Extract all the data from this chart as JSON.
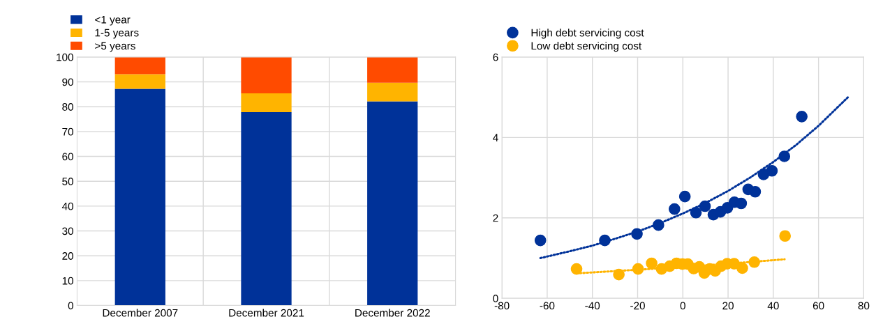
{
  "chart_data": [
    {
      "type": "bar",
      "stacked": true,
      "categories": [
        "December 2007",
        "December 2021",
        "December 2022"
      ],
      "ylim": [
        0,
        100
      ],
      "yticks": [
        0,
        10,
        20,
        30,
        40,
        50,
        60,
        70,
        80,
        90,
        100
      ],
      "grid": true,
      "legend": "top left",
      "series": [
        {
          "name": "<1 year",
          "color": "#003299",
          "values": [
            87.2,
            77.8,
            82.2
          ]
        },
        {
          "name": "1-5 years",
          "color": "#ffb400",
          "values": [
            5.9,
            7.6,
            7.5
          ]
        },
        {
          "name": ">5 years",
          "color": "#ff4b00",
          "values": [
            6.9,
            14.6,
            10.3
          ]
        }
      ]
    },
    {
      "type": "scatter",
      "xlim": [
        -80,
        80
      ],
      "xticks": [
        -80,
        -60,
        -40,
        -20,
        0,
        20,
        40,
        60,
        80
      ],
      "ylim": [
        0,
        6
      ],
      "yticks": [
        0,
        2,
        4,
        6
      ],
      "grid": true,
      "legend": "top left",
      "marker": "circle",
      "series": [
        {
          "name": "High debt servicing cost",
          "color": "#003299",
          "x": [
            -63,
            -34.5,
            -20.3,
            -10.8,
            -3.7,
            0.9,
            5.8,
            9.8,
            13.5,
            16.6,
            19.7,
            22.8,
            25.8,
            28.9,
            32,
            35.7,
            39.4,
            44.9,
            52.6
          ],
          "values": [
            1.44,
            1.44,
            1.6,
            1.82,
            2.22,
            2.53,
            2.13,
            2.29,
            2.08,
            2.15,
            2.25,
            2.39,
            2.36,
            2.71,
            2.65,
            3.08,
            3.17,
            3.53,
            4.52
          ]
        },
        {
          "name": "Low debt servicing cost",
          "color": "#ffb400",
          "x": [
            -47,
            -28.3,
            -19.8,
            -13.8,
            -9.4,
            -5.8,
            -2.8,
            -0.2,
            2.2,
            4.8,
            7.3,
            9.5,
            11.9,
            14.3,
            16.9,
            19.6,
            22.7,
            26.3,
            31.6,
            45.2
          ],
          "values": [
            0.73,
            0.59,
            0.73,
            0.87,
            0.73,
            0.8,
            0.87,
            0.85,
            0.85,
            0.74,
            0.78,
            0.63,
            0.73,
            0.68,
            0.8,
            0.86,
            0.86,
            0.75,
            0.9,
            1.55
          ]
        },
        {
          "type": "line",
          "line_style": "dotted",
          "marker": "none",
          "color": "#003299",
          "x": [
            -63,
            -50,
            -40,
            -30,
            -20,
            -10,
            0,
            10,
            20,
            30,
            40,
            50,
            60,
            73
          ],
          "values": [
            1.0,
            1.17,
            1.31,
            1.48,
            1.66,
            1.87,
            2.11,
            2.37,
            2.67,
            3.01,
            3.39,
            3.81,
            4.29,
            5.0
          ]
        },
        {
          "type": "line",
          "line_style": "dotted",
          "marker": "none",
          "color": "#ffb400",
          "x": [
            -47,
            -20,
            0,
            20,
            45
          ],
          "values": [
            0.62,
            0.71,
            0.78,
            0.86,
            0.97
          ]
        }
      ]
    }
  ]
}
